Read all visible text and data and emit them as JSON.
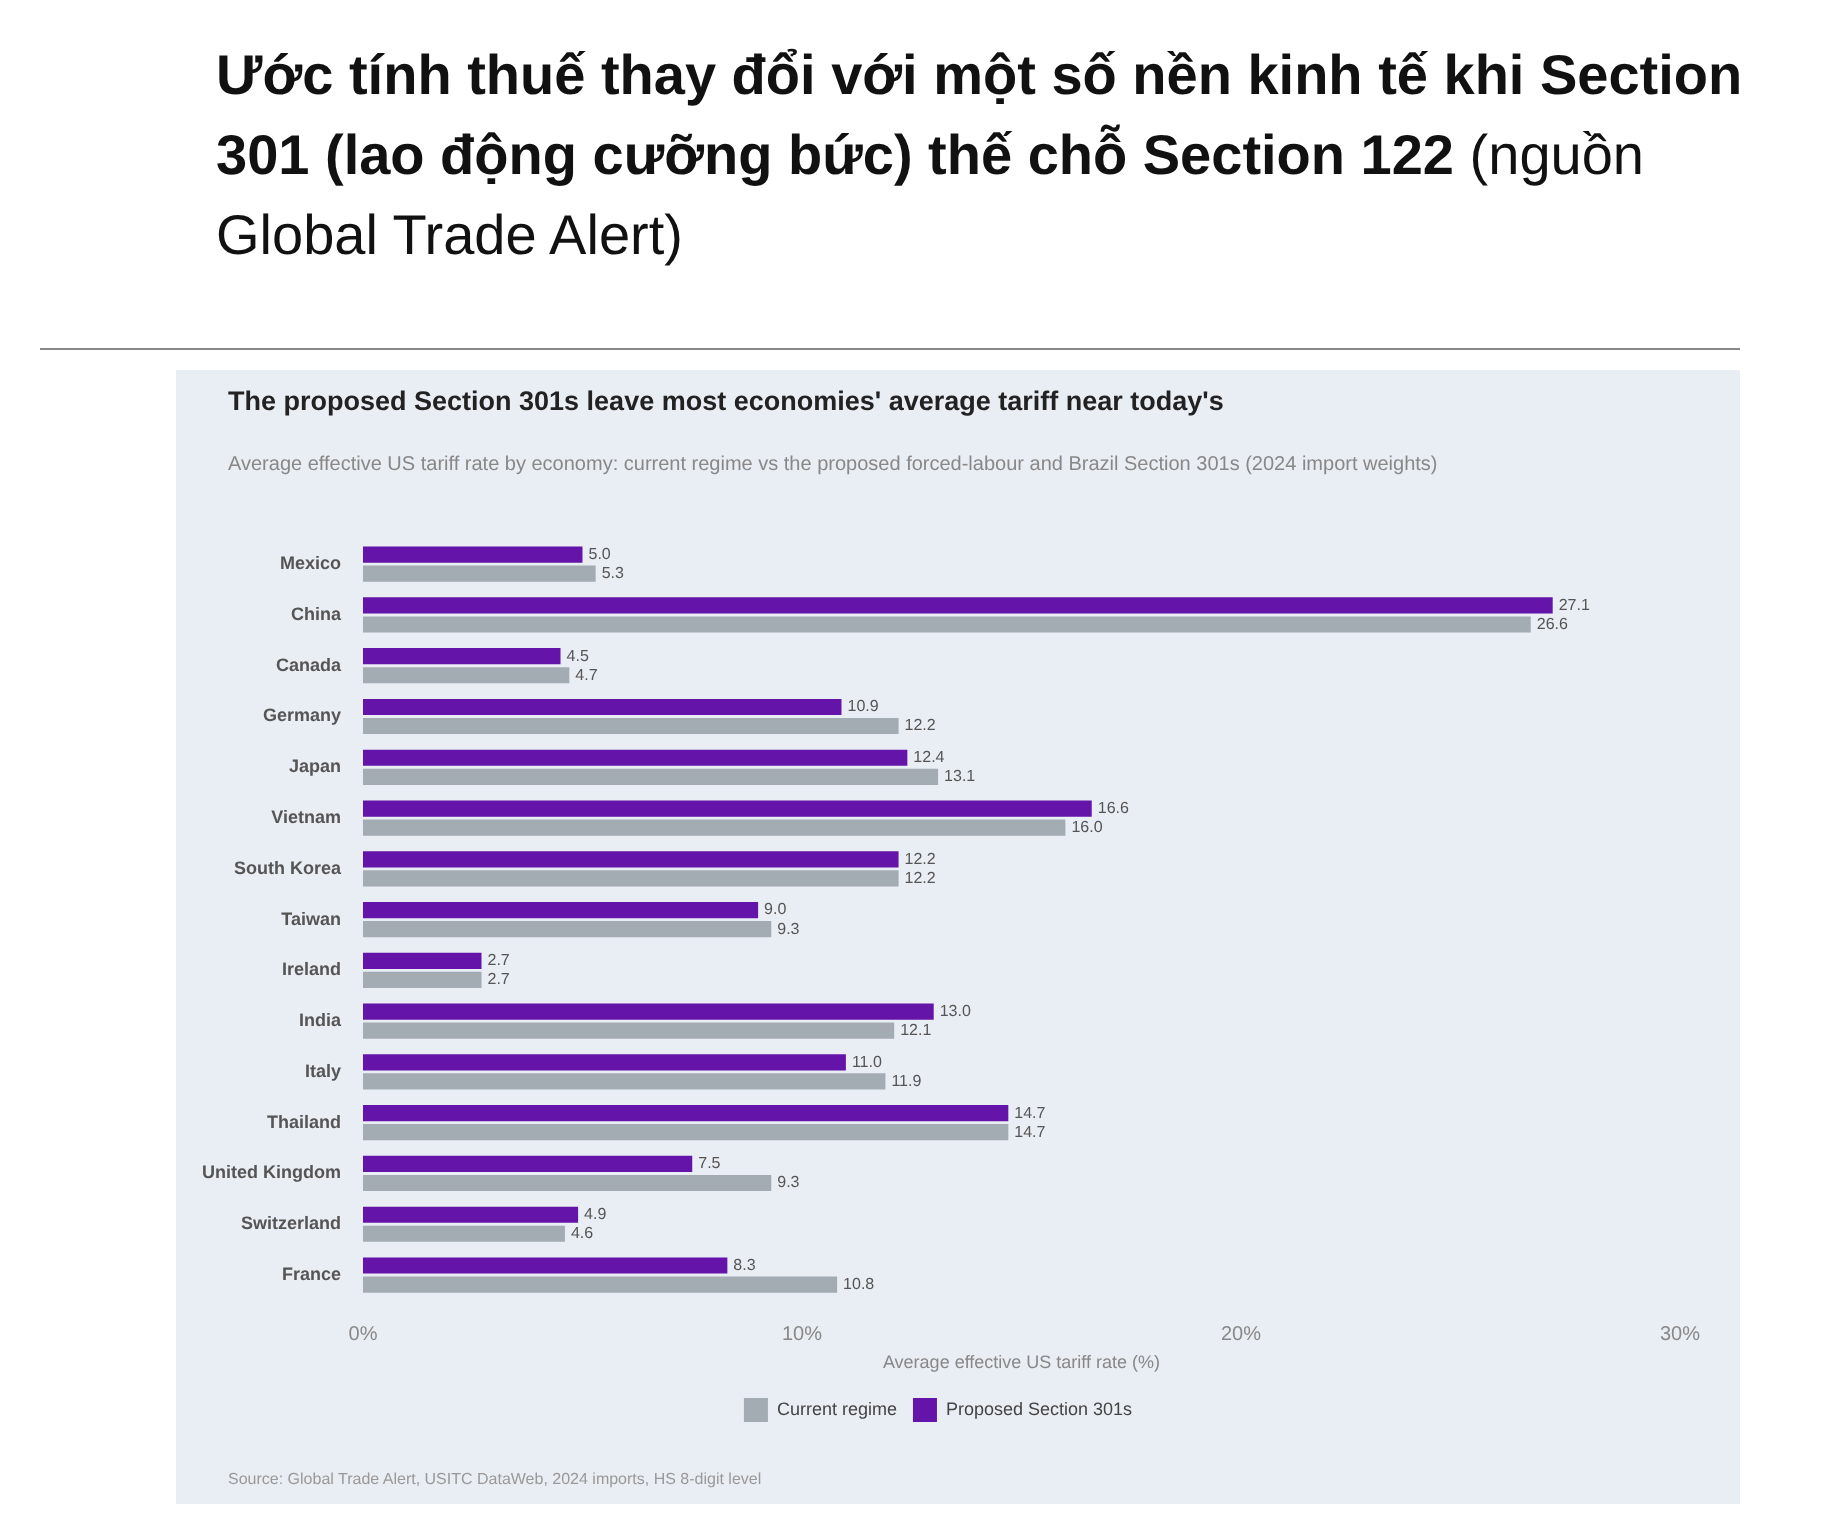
{
  "chart_data": {
    "type": "bar",
    "orientation": "horizontal",
    "title": "Ước tính thuế thay đổi với một số nền kinh tế khi Section 301 (lao động cưỡng bức) thế chỗ Section 122 (nguồn Global Trade Alert)",
    "subtitle": "The proposed Section 301s leave most economies' average tariff near today's",
    "annotations": [
      "Average effective US tariff rate by economy: current regime vs the proposed forced-labour and Brazil Section 301s (2024 import weights)",
      "Source: Global Trade Alert, USITC DataWeb, 2024 imports, HS 8-digit level"
    ],
    "xlabel": "Average effective US tariff rate (%)",
    "categories": [
      "Mexico",
      "China",
      "Canada",
      "Germany",
      "Japan",
      "Vietnam",
      "South Korea",
      "Taiwan",
      "Ireland",
      "India",
      "Italy",
      "Thailand",
      "United Kingdom",
      "Switzerland",
      "France"
    ],
    "series": [
      {
        "name": "Proposed Section 301s",
        "color": "#6414a8",
        "values": [
          5.0,
          27.1,
          4.5,
          10.9,
          12.4,
          16.6,
          12.2,
          9.0,
          2.7,
          13.0,
          11.0,
          14.7,
          7.5,
          4.9,
          8.3
        ],
        "value_labels": [
          "5.0",
          "27.1",
          "4.5",
          "10.9",
          "12.4",
          "16.6",
          "12.2",
          "9.0",
          "2.7",
          "13.0",
          "11.0",
          "14.7",
          "7.5",
          "4.9",
          "8.3"
        ]
      },
      {
        "name": "Current regime",
        "color": "#a3abb3",
        "values": [
          5.3,
          26.6,
          4.7,
          12.2,
          13.1,
          16.0,
          12.2,
          9.3,
          2.7,
          12.1,
          11.9,
          14.7,
          9.3,
          4.6,
          10.8
        ],
        "value_labels": [
          "5.3",
          "26.6",
          "4.7",
          "12.2",
          "13.1",
          "16.0",
          "12.2",
          "9.3",
          "2.7",
          "12.1",
          "11.9",
          "14.7",
          "9.3",
          "4.6",
          "10.8"
        ]
      }
    ],
    "xlim": [
      0,
      30
    ],
    "xticks": [
      {
        "value": 0,
        "label": "0%"
      },
      {
        "value": 10,
        "label": "10%"
      },
      {
        "value": 20,
        "label": "20%"
      },
      {
        "value": 30,
        "label": "30%"
      }
    ],
    "legend": "bottom"
  }
}
